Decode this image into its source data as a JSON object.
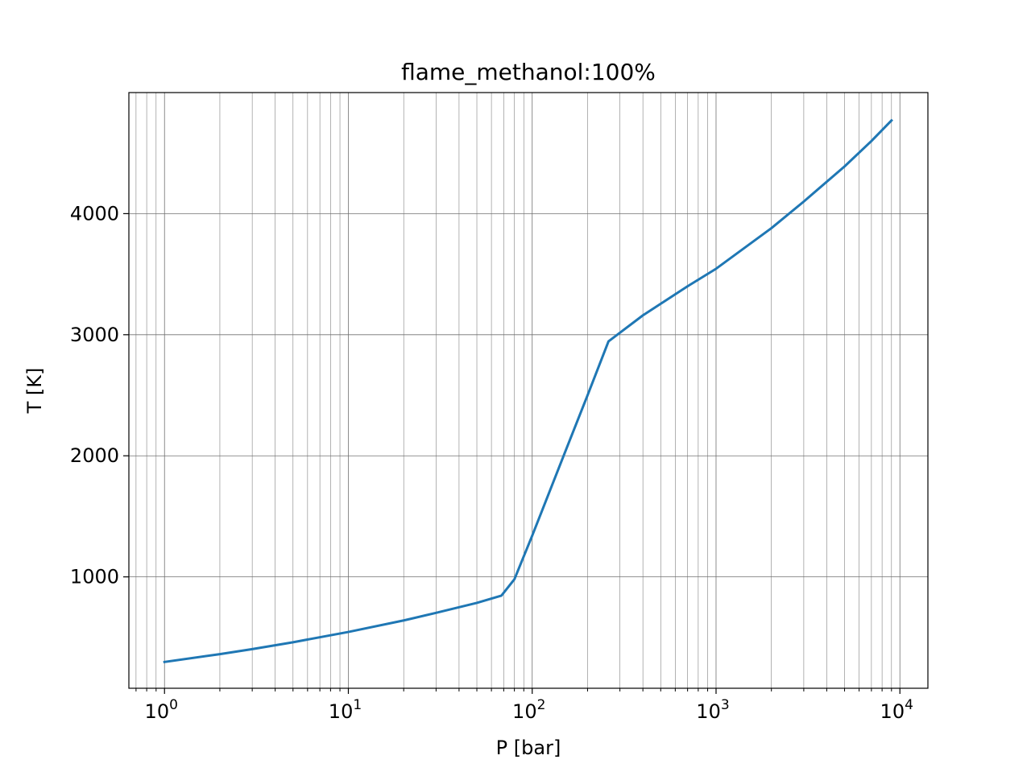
{
  "chart_data": {
    "type": "line",
    "title": "flame_methanol:100%",
    "xlabel": "P [bar]",
    "ylabel": "T [K]",
    "xscale": "log",
    "xlim": [
      0.64,
      14200
    ],
    "ylim": [
      80,
      5000
    ],
    "grid": "major and minor",
    "xticks": [
      {
        "value": 1,
        "base": "10",
        "exp": "0"
      },
      {
        "value": 10,
        "base": "10",
        "exp": "1"
      },
      {
        "value": 100,
        "base": "10",
        "exp": "2"
      },
      {
        "value": 1000,
        "base": "10",
        "exp": "3"
      },
      {
        "value": 10000,
        "base": "10",
        "exp": "4"
      }
    ],
    "yticks": [
      1000,
      2000,
      3000,
      4000
    ],
    "series": [
      {
        "color": "#1f77b4",
        "x": [
          1,
          2,
          3,
          5,
          10,
          20,
          30,
          50,
          68,
          80,
          100,
          150,
          200,
          260,
          400,
          700,
          1000,
          2000,
          3000,
          5000,
          7000,
          9000
        ],
        "y": [
          297,
          362,
          403,
          460,
          545,
          640,
          703,
          785,
          845,
          980,
          1340,
          2020,
          2500,
          2945,
          3160,
          3400,
          3545,
          3880,
          4100,
          4390,
          4600,
          4770
        ]
      }
    ]
  }
}
